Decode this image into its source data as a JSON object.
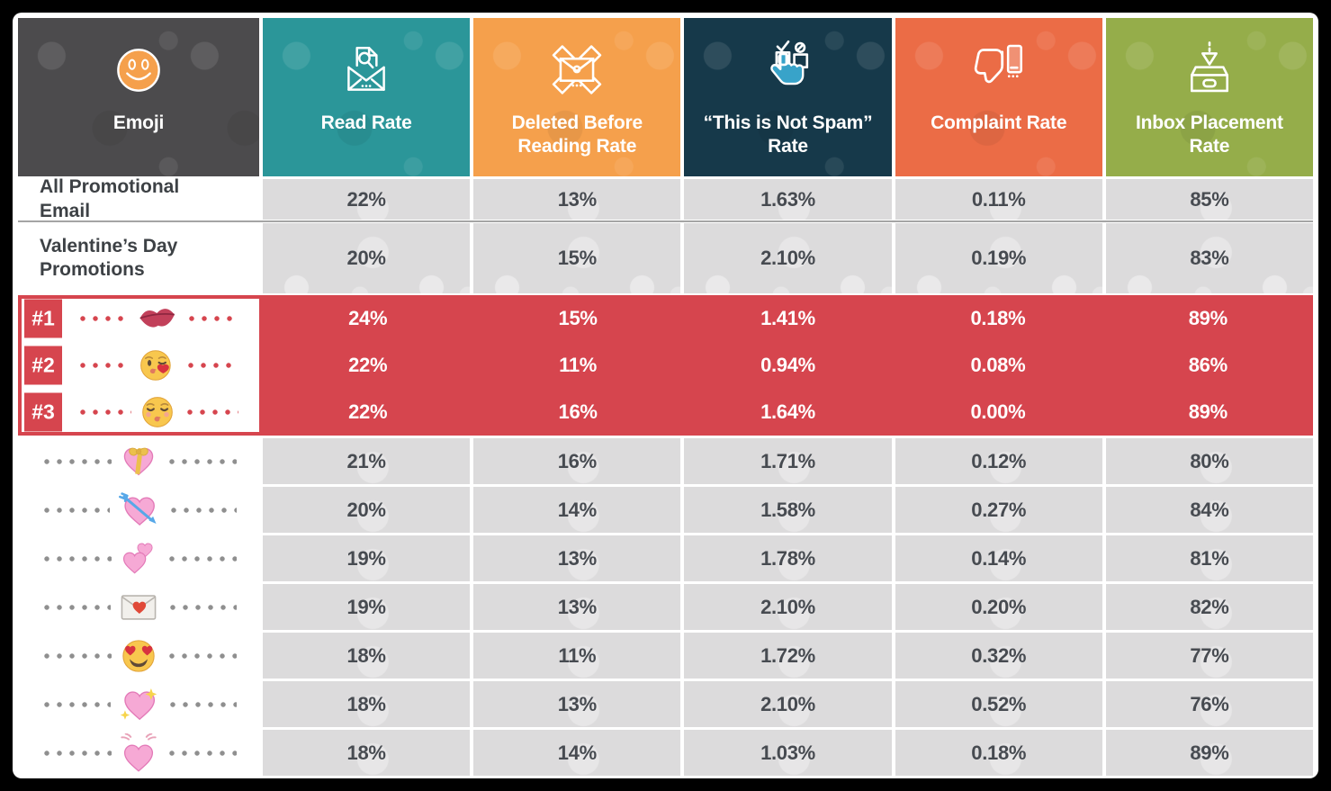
{
  "chart_data": {
    "type": "table",
    "columns": [
      {
        "label": "Emoji",
        "icon": "smiley-icon",
        "color": "#4c4b4d"
      },
      {
        "label": "Read Rate",
        "icon": "envelope-magnifier-icon",
        "color": "#2b9699"
      },
      {
        "label": "Deleted Before Reading Rate",
        "icon": "deleted-envelope-icon",
        "color": "#f5a04c"
      },
      {
        "label": "“This is Not Spam” Rate",
        "icon": "tap-not-spam-icon",
        "color": "#16394a"
      },
      {
        "label": "Complaint Rate",
        "icon": "thumbs-down-phone-icon",
        "color": "#eb6c46"
      },
      {
        "label": "Inbox Placement Rate",
        "icon": "inbox-arrow-icon",
        "color": "#95ad4a"
      }
    ],
    "rows": [
      {
        "kind": "summary",
        "label": "All Promotional Email",
        "values": [
          "22%",
          "13%",
          "1.63%",
          "0.11%",
          "85%"
        ]
      },
      {
        "kind": "summary",
        "label": "Valentine’s Day Promotions",
        "values": [
          "20%",
          "15%",
          "2.10%",
          "0.19%",
          "83%"
        ]
      },
      {
        "kind": "top3",
        "rank": "#1",
        "emoji": "kiss-mark-emoji",
        "values": [
          "24%",
          "15%",
          "1.41%",
          "0.18%",
          "89%"
        ]
      },
      {
        "kind": "top3",
        "rank": "#2",
        "emoji": "face-blowing-kiss-emoji",
        "values": [
          "22%",
          "11%",
          "0.94%",
          "0.08%",
          "86%"
        ]
      },
      {
        "kind": "top3",
        "rank": "#3",
        "emoji": "kissing-face-closed-eyes-emoji",
        "values": [
          "22%",
          "16%",
          "1.64%",
          "0.00%",
          "89%"
        ]
      },
      {
        "kind": "emoji",
        "emoji": "heart-with-ribbon-emoji",
        "values": [
          "21%",
          "16%",
          "1.71%",
          "0.12%",
          "80%"
        ]
      },
      {
        "kind": "emoji",
        "emoji": "heart-with-arrow-emoji",
        "values": [
          "20%",
          "14%",
          "1.58%",
          "0.27%",
          "84%"
        ]
      },
      {
        "kind": "emoji",
        "emoji": "two-hearts-emoji",
        "values": [
          "19%",
          "13%",
          "1.78%",
          "0.14%",
          "81%"
        ]
      },
      {
        "kind": "emoji",
        "emoji": "love-letter-emoji",
        "values": [
          "19%",
          "13%",
          "2.10%",
          "0.20%",
          "82%"
        ]
      },
      {
        "kind": "emoji",
        "emoji": "smiling-face-heart-eyes-emoji",
        "values": [
          "18%",
          "11%",
          "1.72%",
          "0.32%",
          "77%"
        ]
      },
      {
        "kind": "emoji",
        "emoji": "sparkling-heart-emoji",
        "values": [
          "18%",
          "13%",
          "2.10%",
          "0.52%",
          "76%"
        ]
      },
      {
        "kind": "emoji",
        "emoji": "beating-heart-emoji",
        "values": [
          "18%",
          "14%",
          "1.03%",
          "0.18%",
          "89%"
        ]
      }
    ]
  },
  "colors": {
    "frame": "#000000",
    "card": "#ffffff",
    "cell_gray": "#dcdbdc",
    "red": "#d6454e",
    "value_text": "#474b51",
    "label_text": "#3d4145",
    "divider": "#a5a5a5",
    "leader_dot_gray": "#8f8f8f"
  }
}
